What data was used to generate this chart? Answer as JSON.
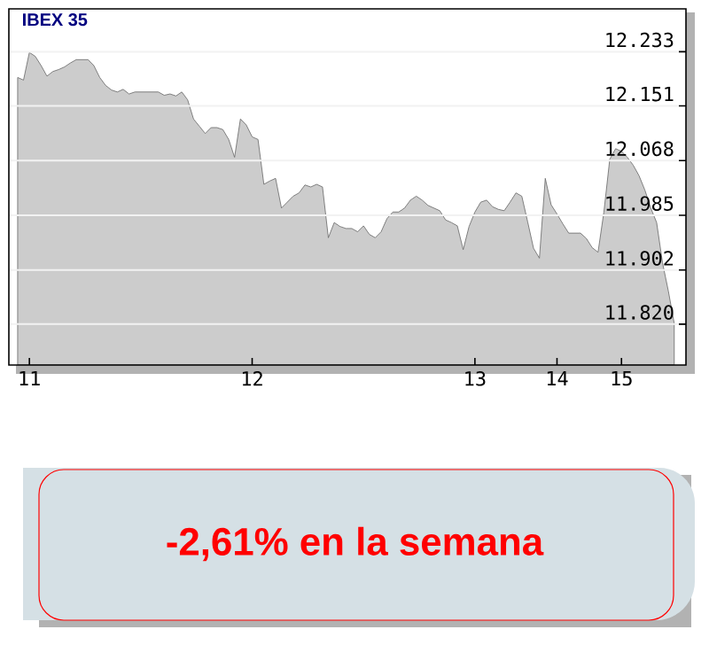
{
  "chart_data": {
    "type": "area",
    "title": "IBEX 35",
    "annotations": [
      "-2,61% en la semana"
    ],
    "categories": [
      null,
      null,
      "11",
      null,
      null,
      null,
      null,
      null,
      null,
      null,
      null,
      null,
      null,
      null,
      null,
      null,
      null,
      null,
      null,
      null,
      null,
      null,
      null,
      null,
      null,
      null,
      null,
      null,
      null,
      null,
      null,
      null,
      null,
      null,
      null,
      null,
      null,
      null,
      null,
      null,
      "12",
      null,
      null,
      null,
      null,
      null,
      null,
      null,
      null,
      null,
      null,
      null,
      null,
      null,
      null,
      null,
      null,
      null,
      null,
      null,
      null,
      null,
      null,
      null,
      null,
      null,
      null,
      null,
      null,
      null,
      null,
      null,
      null,
      null,
      null,
      null,
      null,
      null,
      "13",
      null,
      null,
      null,
      null,
      null,
      null,
      null,
      null,
      null,
      null,
      null,
      null,
      null,
      "14",
      null,
      null,
      null,
      null,
      null,
      null,
      null,
      null,
      null,
      null,
      "15",
      null,
      null,
      null,
      null,
      null,
      null,
      null,
      null,
      null
    ],
    "values": [
      12194,
      12190,
      12232,
      12226,
      12212,
      12196,
      12203,
      12206,
      12210,
      12216,
      12221,
      12221,
      12221,
      12212,
      12194,
      12182,
      12175,
      12172,
      12176,
      12169,
      12172,
      12172,
      12172,
      12172,
      12172,
      12167,
      12169,
      12166,
      12172,
      12160,
      12131,
      12120,
      12109,
      12118,
      12118,
      12115,
      12100,
      12073,
      12131,
      12122,
      12104,
      12100,
      12032,
      12037,
      12041,
      11996,
      12005,
      12014,
      12019,
      12031,
      12028,
      12032,
      12028,
      11951,
      11974,
      11968,
      11965,
      11965,
      11960,
      11969,
      11956,
      11951,
      11960,
      11980,
      11990,
      11990,
      11996,
      12008,
      12014,
      12008,
      12000,
      11996,
      11992,
      11978,
      11974,
      11969,
      11933,
      11968,
      11990,
      12005,
      12008,
      11998,
      11994,
      11992,
      12005,
      12019,
      12014,
      11975,
      11935,
      11920,
      12041,
      12001,
      11987,
      11972,
      11958,
      11958,
      11958,
      11950,
      11936,
      11929,
      11990,
      12070,
      12086,
      12082,
      12073,
      12061,
      12045,
      12023,
      11996,
      11974,
      11913,
      11870,
      11821
    ],
    "color": "#cccccc",
    "ylim": [
      11758,
      12298
    ],
    "yticks": [
      {
        "value": 11820,
        "label": "11.820"
      },
      {
        "value": 11902,
        "label": "11.902"
      },
      {
        "value": 11985,
        "label": "11.985"
      },
      {
        "value": 12068,
        "label": "12.068"
      },
      {
        "value": 12151,
        "label": "12.151"
      },
      {
        "value": 12233,
        "label": "12.233"
      }
    ],
    "grid": "y"
  }
}
